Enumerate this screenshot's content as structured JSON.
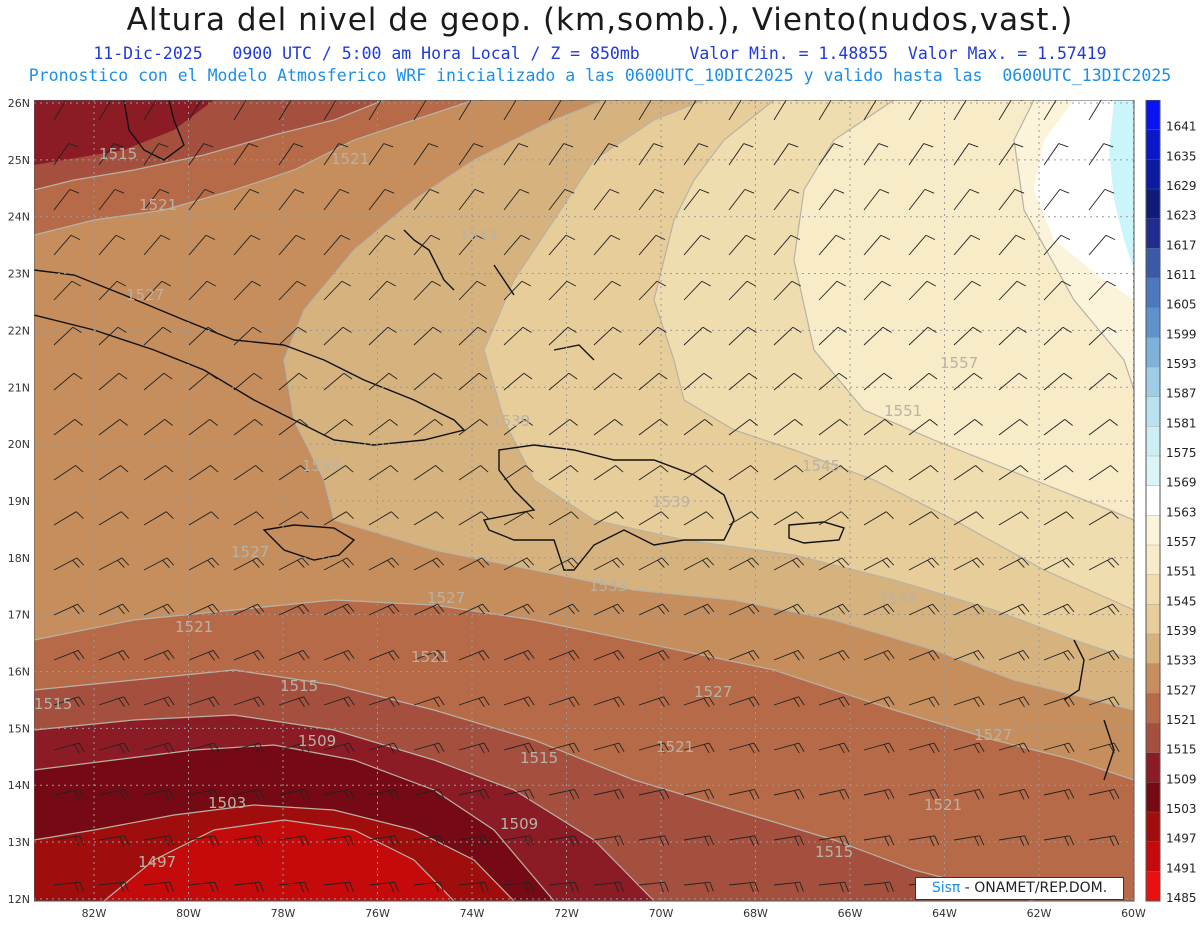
{
  "header": {
    "title": "Altura del nivel de geop. (km,somb.), Viento(nudos,vast.)",
    "info": "11-Dic-2025   0900 UTC / 5:00 am Hora Local / Z = 850mb     Valor Min. = 1.48855  Valor Max. = 1.57419",
    "model": "Pronostico con el Modelo Atmosferico WRF inicializado a las 0600UTC_10DIC2025 y valido hasta las  0600UTC_13DIC2025"
  },
  "map": {
    "lat_labels": [
      "26N",
      "25N",
      "24N",
      "23N",
      "22N",
      "21N",
      "20N",
      "19N",
      "18N",
      "17N",
      "16N",
      "15N",
      "14N",
      "13N",
      "12N"
    ],
    "lon_labels": [
      "82W",
      "80W",
      "78W",
      "76W",
      "74W",
      "72W",
      "70W",
      "68W",
      "66W",
      "64W",
      "62W",
      "60W"
    ],
    "contour_labels": [
      "1515",
      "1521",
      "1521",
      "1527",
      "1533",
      "1533",
      "1539",
      "1539",
      "1545",
      "1551",
      "1557",
      "1527",
      "1527",
      "1521",
      "1521",
      "1515",
      "1515",
      "1509",
      "1515",
      "1521",
      "1503",
      "1509",
      "1497",
      "1515",
      "1521",
      "1527",
      "1533",
      "1539",
      "1527"
    ],
    "colors": {
      "c1491": "#c40a0a",
      "c1497": "#a00d0d",
      "c1503": "#760a14",
      "c1509": "#8b1c26",
      "c1515": "#a5503f",
      "c1521": "#b66a48",
      "c1527": "#c58e5c",
      "c1533": "#d6b37e",
      "c1539": "#e6cd9a",
      "c1545": "#efdcaf",
      "c1551": "#f7ebc8",
      "c1557": "#fbf3da",
      "c1563": "#ffffff",
      "c1569": "#c9f5fb"
    }
  },
  "colorbar": {
    "labels": [
      "1641",
      "1635",
      "1629",
      "1623",
      "1617",
      "1611",
      "1605",
      "1599",
      "1593",
      "1587",
      "1581",
      "1575",
      "1569",
      "1563",
      "1557",
      "1551",
      "1545",
      "1539",
      "1533",
      "1527",
      "1521",
      "1515",
      "1509",
      "1503",
      "1497",
      "1491",
      "1485"
    ],
    "colors": [
      "#0a14f2",
      "#0b18c9",
      "#0c1aa1",
      "#101a7a",
      "#1f2d8f",
      "#3a5aa8",
      "#4c78bd",
      "#5f92cb",
      "#7fb2da",
      "#9fcde6",
      "#b8e3ee",
      "#cdeff3",
      "#dbf5f6",
      "#ffffff",
      "#fbf3da",
      "#f7ebc8",
      "#efdcaf",
      "#e6cd9a",
      "#d6b37e",
      "#c58e5c",
      "#b66a48",
      "#a5503f",
      "#8b1c26",
      "#760a14",
      "#a00d0d",
      "#c40a0a",
      "#e81010"
    ]
  },
  "credit": {
    "brand": "Sis",
    "pi": "π",
    "org": " - ONAMET/REP.DOM."
  }
}
